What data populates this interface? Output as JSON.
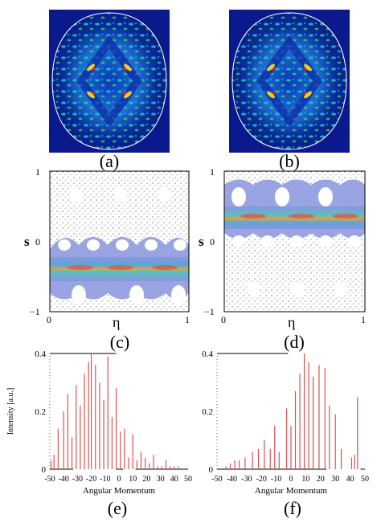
{
  "labels": {
    "a": "(a)",
    "b": "(b)",
    "c": "(c)",
    "d": "(d)",
    "e": "(e)",
    "f": "(f)"
  },
  "phase_space": {
    "y_axis_label": "s",
    "x_axis_label": "η",
    "y_ticks": [
      "1",
      "0",
      "−1"
    ],
    "x_ticks": [
      "0",
      "1"
    ]
  },
  "chart_data": [
    {
      "panel": "(e)",
      "type": "bar",
      "xlabel": "Angular Momentum",
      "ylabel": "Intensity [a.u.]",
      "xlim": [
        -50,
        50
      ],
      "ylim": [
        0,
        0.4
      ],
      "x_ticks": [
        -50,
        -40,
        -30,
        -20,
        -10,
        0,
        10,
        20,
        30,
        40,
        50
      ],
      "y_ticks": [
        0,
        0.2,
        0.4
      ],
      "x": [
        -49,
        -47,
        -44,
        -40,
        -37,
        -34,
        -31,
        -28,
        -25,
        -22,
        -20,
        -17,
        -14,
        -11,
        -8,
        -5,
        -2,
        1,
        4,
        7,
        10,
        13,
        16,
        19,
        22,
        25,
        28,
        31,
        34,
        37,
        40,
        43
      ],
      "values": [
        0.03,
        0.05,
        0.14,
        0.2,
        0.26,
        0.11,
        0.29,
        0.22,
        0.33,
        0.37,
        0.4,
        0.36,
        0.3,
        0.24,
        0.39,
        0.18,
        0.28,
        0.13,
        0.14,
        0.04,
        0.12,
        0.03,
        0.06,
        0.04,
        0.02,
        0.05,
        0.01,
        0.01,
        0.03,
        0.01,
        0.01,
        0.01
      ],
      "baseline_gap_ranges": [
        [
          -33,
          -2
        ],
        [
          3,
          12
        ]
      ]
    },
    {
      "panel": "(f)",
      "type": "bar",
      "xlabel": "Angular Momentum",
      "ylabel": "",
      "xlim": [
        -50,
        50
      ],
      "ylim": [
        0,
        0.4
      ],
      "x_ticks": [
        -50,
        -40,
        -30,
        -20,
        -10,
        0,
        10,
        20,
        30,
        40,
        50
      ],
      "y_ticks": [
        0,
        0.2,
        0.4
      ],
      "x": [
        -44,
        -41,
        -38,
        -35,
        -31,
        -26,
        -22,
        -18,
        -14,
        -11,
        -8,
        -3,
        0,
        3,
        6,
        9,
        12,
        15,
        19,
        23,
        26,
        30,
        34,
        41,
        43,
        45
      ],
      "values": [
        0.01,
        0.02,
        0.03,
        0.03,
        0.04,
        0.06,
        0.07,
        0.1,
        0.07,
        0.15,
        0.06,
        0.21,
        0.15,
        0.27,
        0.33,
        0.4,
        0.37,
        0.32,
        0.36,
        0.35,
        0.22,
        0.19,
        0.07,
        0.04,
        0.05,
        0.25
      ],
      "baseline_gap_ranges": [
        [
          24,
          47
        ]
      ]
    }
  ],
  "colors": {
    "bar": "#e05050",
    "field": "#0a1f8c",
    "band_outer": "#7f8cdc",
    "band_inner": "#4aa8c8"
  }
}
